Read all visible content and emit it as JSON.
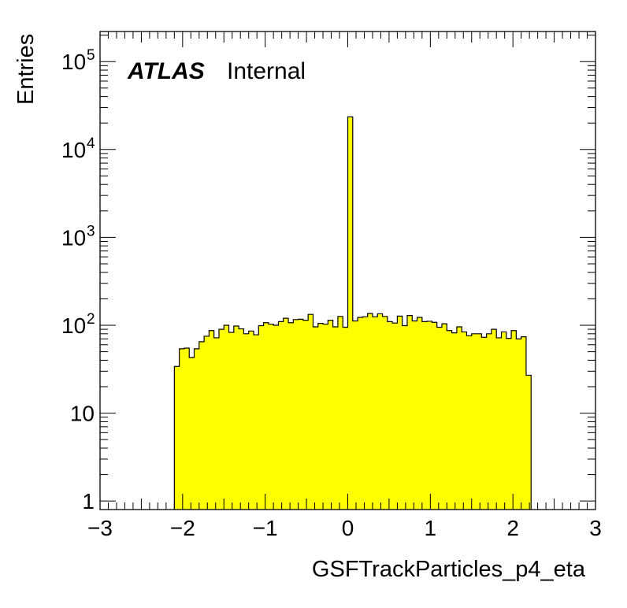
{
  "chart_data": {
    "type": "bar",
    "style": "histogram-step-filled",
    "xlabel": "GSFTrackParticles_p4_eta",
    "ylabel": "Entries",
    "annotation": {
      "experiment": "ATLAS",
      "status": "Internal"
    },
    "x_range": [
      -3,
      3
    ],
    "y_range": [
      0.8,
      220000
    ],
    "log_y": true,
    "x_ticks": [
      "−3",
      "−2",
      "−1",
      "0",
      "1",
      "2",
      "3"
    ],
    "y_ticks": [
      {
        "value": 1,
        "base": "1",
        "exp": ""
      },
      {
        "value": 10,
        "base": "10",
        "exp": ""
      },
      {
        "value": 100,
        "base": "10",
        "exp": "2"
      },
      {
        "value": 1000,
        "base": "10",
        "exp": "3"
      },
      {
        "value": 10000,
        "base": "10",
        "exp": "4"
      },
      {
        "value": 100000,
        "base": "10",
        "exp": "5"
      }
    ],
    "fill_color": "#ffff00",
    "line_color": "#000000",
    "bin_width": 0.06,
    "bins_start": -2.1,
    "values": [
      34,
      54,
      55,
      43,
      54,
      65,
      75,
      87,
      72,
      90,
      100,
      83,
      98,
      91,
      80,
      86,
      78,
      99,
      107,
      103,
      100,
      110,
      120,
      107,
      116,
      117,
      114,
      133,
      96,
      105,
      103,
      114,
      96,
      126,
      95,
      23500,
      112,
      123,
      125,
      136,
      125,
      135,
      126,
      110,
      106,
      127,
      99,
      129,
      112,
      123,
      110,
      111,
      108,
      95,
      104,
      87,
      82,
      96,
      84,
      76,
      80,
      80,
      73,
      80,
      90,
      72,
      84,
      71,
      87,
      70,
      74,
      27
    ]
  }
}
